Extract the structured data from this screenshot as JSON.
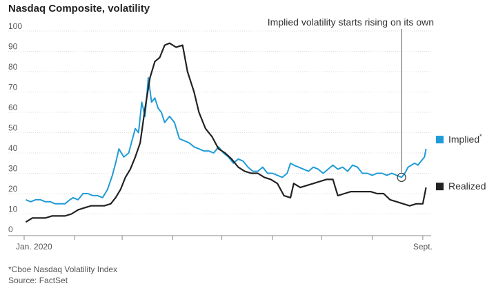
{
  "chart_data": {
    "type": "line",
    "title": "Nasdaq Composite, volatility",
    "ylim": [
      0,
      100
    ],
    "y_ticks": [
      10,
      20,
      30,
      40,
      50,
      60,
      70,
      80,
      90,
      100
    ],
    "y_ticks_labeled": [
      "0",
      "10",
      "20",
      "30",
      "40",
      "50",
      "60",
      "70",
      "80",
      "90",
      "100"
    ],
    "xlim": [
      "2020-01-01",
      "2020-09-04"
    ],
    "x_tick_dates": [
      "2020-01-01",
      "2020-02-01",
      "2020-03-01",
      "2020-04-01",
      "2020-05-01",
      "2020-06-01",
      "2020-07-01",
      "2020-08-01",
      "2020-09-01"
    ],
    "x_tick_labels": [
      "Jan. 2020",
      "",
      "",
      "",
      "",
      "",
      "",
      "",
      "Sept."
    ],
    "grid": true,
    "series": [
      {
        "name": "Implied",
        "name_suffix": "*",
        "color": "#1f9bd7",
        "points": [
          [
            "2020-01-02",
            17
          ],
          [
            "2020-01-05",
            16
          ],
          [
            "2020-01-08",
            17
          ],
          [
            "2020-01-11",
            17
          ],
          [
            "2020-01-14",
            16
          ],
          [
            "2020-01-17",
            16
          ],
          [
            "2020-01-20",
            15
          ],
          [
            "2020-01-23",
            15
          ],
          [
            "2020-01-26",
            15
          ],
          [
            "2020-01-29",
            17
          ],
          [
            "2020-01-31",
            18
          ],
          [
            "2020-02-03",
            17
          ],
          [
            "2020-02-06",
            20
          ],
          [
            "2020-02-09",
            20
          ],
          [
            "2020-02-12",
            19
          ],
          [
            "2020-02-15",
            19
          ],
          [
            "2020-02-18",
            18
          ],
          [
            "2020-02-21",
            22
          ],
          [
            "2020-02-24",
            29
          ],
          [
            "2020-02-26",
            35
          ],
          [
            "2020-02-28",
            42
          ],
          [
            "2020-03-02",
            38
          ],
          [
            "2020-03-05",
            40
          ],
          [
            "2020-03-07",
            46
          ],
          [
            "2020-03-09",
            52
          ],
          [
            "2020-03-11",
            50
          ],
          [
            "2020-03-13",
            65
          ],
          [
            "2020-03-15",
            58
          ],
          [
            "2020-03-17",
            77
          ],
          [
            "2020-03-19",
            65
          ],
          [
            "2020-03-21",
            67
          ],
          [
            "2020-03-23",
            62
          ],
          [
            "2020-03-25",
            60
          ],
          [
            "2020-03-27",
            55
          ],
          [
            "2020-03-30",
            58
          ],
          [
            "2020-04-02",
            55
          ],
          [
            "2020-04-05",
            47
          ],
          [
            "2020-04-08",
            46
          ],
          [
            "2020-04-11",
            45
          ],
          [
            "2020-04-14",
            43
          ],
          [
            "2020-04-17",
            42
          ],
          [
            "2020-04-20",
            41
          ],
          [
            "2020-04-23",
            41
          ],
          [
            "2020-04-26",
            40
          ],
          [
            "2020-04-29",
            43
          ],
          [
            "2020-05-02",
            40
          ],
          [
            "2020-05-05",
            38
          ],
          [
            "2020-05-08",
            35
          ],
          [
            "2020-05-11",
            37
          ],
          [
            "2020-05-14",
            36
          ],
          [
            "2020-05-17",
            33
          ],
          [
            "2020-05-20",
            31
          ],
          [
            "2020-05-23",
            31
          ],
          [
            "2020-05-26",
            33
          ],
          [
            "2020-05-29",
            30
          ],
          [
            "2020-06-01",
            30
          ],
          [
            "2020-06-04",
            29
          ],
          [
            "2020-06-07",
            28
          ],
          [
            "2020-06-10",
            30
          ],
          [
            "2020-06-12",
            35
          ],
          [
            "2020-06-14",
            34
          ],
          [
            "2020-06-17",
            33
          ],
          [
            "2020-06-20",
            32
          ],
          [
            "2020-06-23",
            31
          ],
          [
            "2020-06-26",
            33
          ],
          [
            "2020-06-29",
            32
          ],
          [
            "2020-07-02",
            30
          ],
          [
            "2020-07-05",
            32
          ],
          [
            "2020-07-08",
            34
          ],
          [
            "2020-07-11",
            32
          ],
          [
            "2020-07-14",
            33
          ],
          [
            "2020-07-17",
            31
          ],
          [
            "2020-07-20",
            34
          ],
          [
            "2020-07-23",
            33
          ],
          [
            "2020-07-26",
            30
          ],
          [
            "2020-07-29",
            30
          ],
          [
            "2020-08-01",
            29
          ],
          [
            "2020-08-04",
            30
          ],
          [
            "2020-08-07",
            30
          ],
          [
            "2020-08-10",
            29
          ],
          [
            "2020-08-13",
            30
          ],
          [
            "2020-08-16",
            29
          ],
          [
            "2020-08-19",
            28
          ],
          [
            "2020-08-21",
            30
          ],
          [
            "2020-08-23",
            33
          ],
          [
            "2020-08-25",
            34
          ],
          [
            "2020-08-27",
            35
          ],
          [
            "2020-08-29",
            34
          ],
          [
            "2020-08-31",
            36
          ],
          [
            "2020-09-02",
            38
          ],
          [
            "2020-09-03",
            42
          ]
        ]
      },
      {
        "name": "Realized",
        "color": "#222222",
        "points": [
          [
            "2020-01-02",
            6
          ],
          [
            "2020-01-06",
            8
          ],
          [
            "2020-01-10",
            8
          ],
          [
            "2020-01-14",
            8
          ],
          [
            "2020-01-18",
            9
          ],
          [
            "2020-01-22",
            9
          ],
          [
            "2020-01-26",
            9
          ],
          [
            "2020-01-30",
            10
          ],
          [
            "2020-02-03",
            12
          ],
          [
            "2020-02-07",
            13
          ],
          [
            "2020-02-11",
            14
          ],
          [
            "2020-02-15",
            14
          ],
          [
            "2020-02-19",
            14
          ],
          [
            "2020-02-23",
            15
          ],
          [
            "2020-02-26",
            18
          ],
          [
            "2020-02-29",
            22
          ],
          [
            "2020-03-03",
            28
          ],
          [
            "2020-03-06",
            32
          ],
          [
            "2020-03-09",
            38
          ],
          [
            "2020-03-12",
            45
          ],
          [
            "2020-03-15",
            62
          ],
          [
            "2020-03-18",
            77
          ],
          [
            "2020-03-21",
            85
          ],
          [
            "2020-03-24",
            87
          ],
          [
            "2020-03-27",
            93
          ],
          [
            "2020-03-30",
            94
          ],
          [
            "2020-04-03",
            92
          ],
          [
            "2020-04-07",
            93
          ],
          [
            "2020-04-10",
            80
          ],
          [
            "2020-04-14",
            70
          ],
          [
            "2020-04-17",
            60
          ],
          [
            "2020-04-21",
            52
          ],
          [
            "2020-04-25",
            48
          ],
          [
            "2020-04-29",
            42
          ],
          [
            "2020-05-03",
            40
          ],
          [
            "2020-05-07",
            37
          ],
          [
            "2020-05-11",
            33
          ],
          [
            "2020-05-15",
            31
          ],
          [
            "2020-05-19",
            30
          ],
          [
            "2020-05-23",
            30
          ],
          [
            "2020-05-27",
            28
          ],
          [
            "2020-05-31",
            27
          ],
          [
            "2020-06-04",
            25
          ],
          [
            "2020-06-08",
            19
          ],
          [
            "2020-06-12",
            18
          ],
          [
            "2020-06-14",
            25
          ],
          [
            "2020-06-18",
            23
          ],
          [
            "2020-06-22",
            24
          ],
          [
            "2020-06-26",
            25
          ],
          [
            "2020-06-30",
            26
          ],
          [
            "2020-07-04",
            27
          ],
          [
            "2020-07-08",
            27
          ],
          [
            "2020-07-11",
            19
          ],
          [
            "2020-07-15",
            20
          ],
          [
            "2020-07-19",
            21
          ],
          [
            "2020-07-23",
            21
          ],
          [
            "2020-07-27",
            21
          ],
          [
            "2020-07-31",
            21
          ],
          [
            "2020-08-04",
            20
          ],
          [
            "2020-08-08",
            20
          ],
          [
            "2020-08-12",
            17
          ],
          [
            "2020-08-16",
            16
          ],
          [
            "2020-08-20",
            15
          ],
          [
            "2020-08-24",
            14
          ],
          [
            "2020-08-28",
            15
          ],
          [
            "2020-09-01",
            15
          ],
          [
            "2020-09-03",
            23
          ]
        ]
      }
    ],
    "annotation": {
      "text": "Implied volatility starts rising on its own",
      "x": "2020-08-19",
      "y": 28
    },
    "footnotes": [
      "*Cboe Nasdaq Volatility Index",
      "Source: FactSet"
    ]
  }
}
